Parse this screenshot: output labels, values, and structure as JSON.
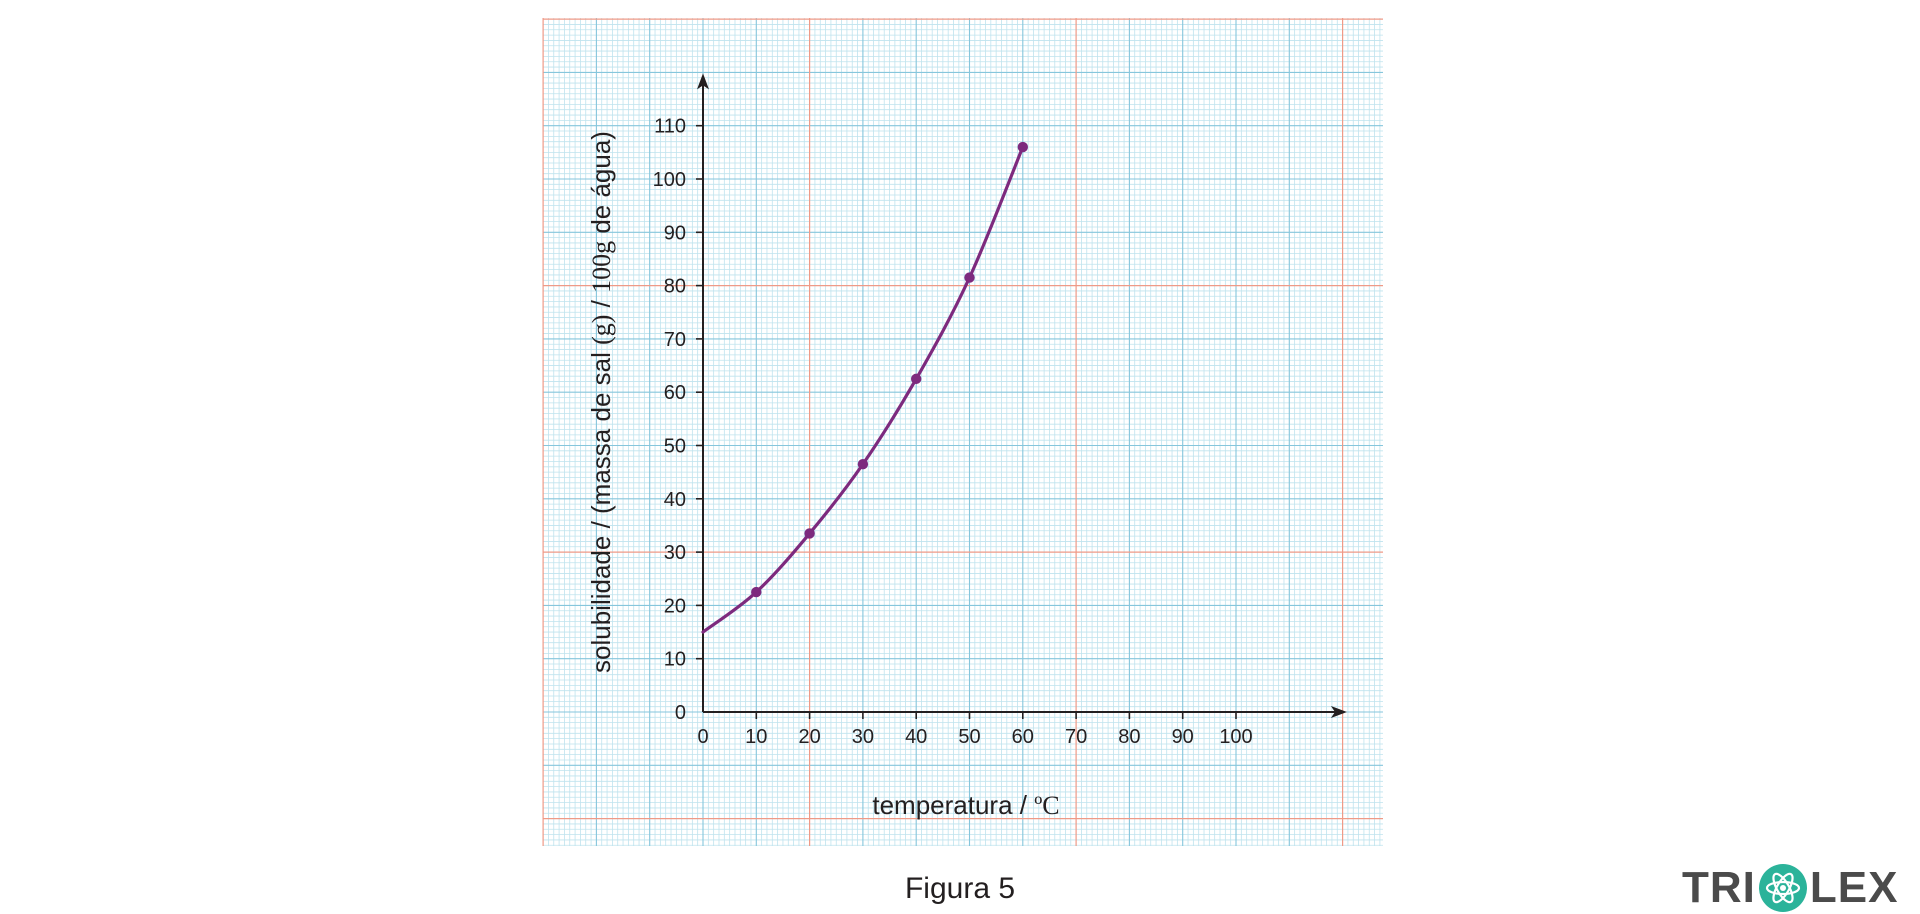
{
  "figure": {
    "caption": "Figura 5",
    "logo_text_left": "TRI",
    "logo_text_right": "LEX",
    "logo_icon": "atom-icon",
    "colors": {
      "background": "#ffffff",
      "grid_minor": "#bfe3ee",
      "grid_major": "#86c6dc",
      "grid_accent": "#ef9a87",
      "curve": "#7d2a7e",
      "axis": "#231f20",
      "logo_text": "#4b4b4b",
      "logo_icon": "#2bb39a"
    }
  },
  "chart_data": {
    "type": "line",
    "xlabel": "temperatura / ºC",
    "ylabel": "solubilidade / (massa de sal (g) / 100g de água)",
    "xlabel_parts": [
      "temperatura / ",
      "ºC"
    ],
    "ylabel_parts": [
      "solubilidade / (massa de sal ",
      "(g)",
      " / ",
      "100g",
      " de água)"
    ],
    "xlim": [
      0,
      118
    ],
    "ylim": [
      0,
      117
    ],
    "x_ticks": [
      0,
      10,
      20,
      30,
      40,
      50,
      60,
      70,
      80,
      90,
      100
    ],
    "y_ticks": [
      0,
      10,
      20,
      30,
      40,
      50,
      60,
      70,
      80,
      90,
      100,
      110
    ],
    "grid": true,
    "series": [
      {
        "points": [
          {
            "x": 10,
            "y": 22.5
          },
          {
            "x": 20,
            "y": 33.5
          },
          {
            "x": 30,
            "y": 46.5
          },
          {
            "x": 40,
            "y": 62.5
          },
          {
            "x": 50,
            "y": 81.5
          },
          {
            "x": 60,
            "y": 106
          }
        ],
        "curve_start": {
          "x": 0,
          "y": 15
        }
      }
    ]
  }
}
